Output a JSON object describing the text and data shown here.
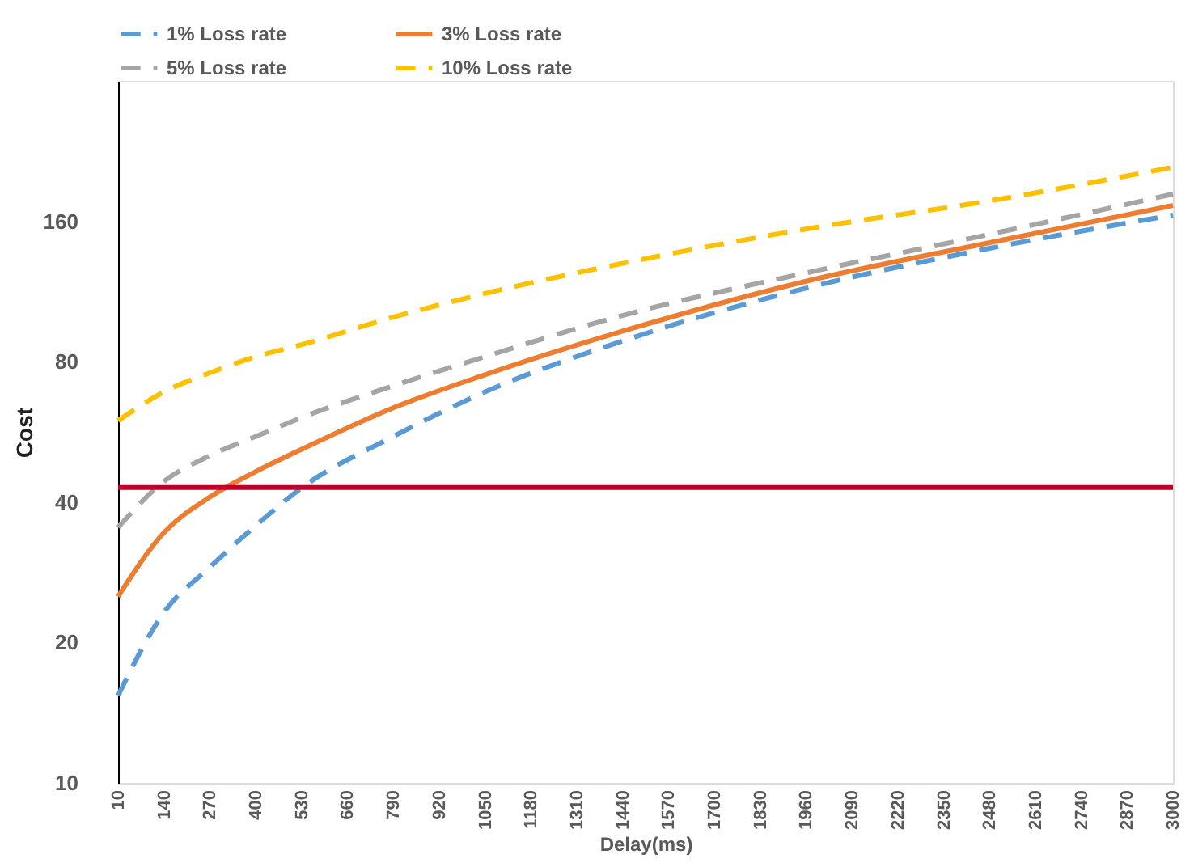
{
  "chart_data": {
    "type": "line",
    "xlabel": "Delay(ms)",
    "ylabel": "Cost",
    "x": [
      10,
      140,
      270,
      400,
      530,
      790,
      1050,
      1440,
      1960,
      2480,
      3000
    ],
    "series": [
      {
        "name": "1% Loss rate",
        "color": "#5b9bd5",
        "line_style": "dashed",
        "values": [
          15.4,
          23.2,
          29.0,
          35.6,
          42.9,
          55.3,
          68.9,
          88.6,
          115,
          140,
          165
        ]
      },
      {
        "name": "3% Loss rate",
        "color": "#ed7d31",
        "line_style": "solid",
        "values": [
          25.1,
          34.4,
          41,
          46.5,
          51.9,
          63.7,
          75,
          93,
          119,
          144,
          173
        ]
      },
      {
        "name": "5% Loss rate",
        "color": "#a5a5a5",
        "line_style": "dashed",
        "values": [
          35.3,
          44.3,
          50.3,
          55.3,
          60.7,
          71,
          82,
          100.5,
          124,
          150,
          183
        ]
      },
      {
        "name": "10% Loss rate",
        "color": "#ffc000",
        "line_style": "dashed",
        "values": [
          59.8,
          68.9,
          75.7,
          82,
          87,
          99.7,
          112,
          130,
          154,
          177,
          209
        ]
      }
    ],
    "log": "y",
    "xlim": [
      10,
      3000
    ],
    "ylim": [
      10,
      320
    ],
    "xticks": [
      10,
      140,
      270,
      400,
      530,
      660,
      790,
      920,
      1050,
      1180,
      1310,
      1440,
      1570,
      1700,
      1830,
      1960,
      2090,
      2220,
      2350,
      2480,
      2610,
      2740,
      2870,
      3000
    ],
    "yticks": [
      10,
      20,
      40,
      80,
      160
    ],
    "ref_lines": [
      {
        "axis": "y",
        "value": 43,
        "color": "#c0002a",
        "line_style": "solid"
      }
    ],
    "grid": false,
    "legend": "top",
    "marker": "none"
  }
}
